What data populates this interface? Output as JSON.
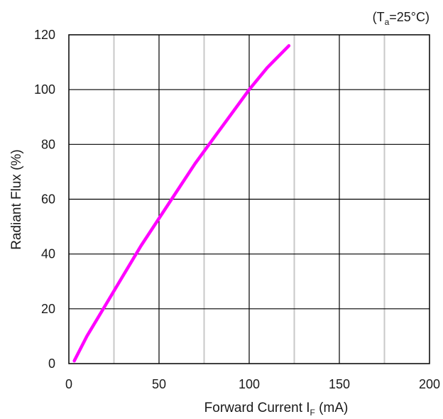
{
  "chart_data": {
    "type": "line",
    "condition_note": {
      "prefix": "(T",
      "subscript": "a",
      "suffix": "=25°C)"
    },
    "xlabel": {
      "main": "Forward Current I",
      "subscript": "F",
      "suffix": " (mA)"
    },
    "ylabel": "Radiant Flux (%)",
    "xlim": [
      0,
      200
    ],
    "ylim": [
      0,
      120
    ],
    "xticks": [
      0,
      50,
      100,
      150,
      200
    ],
    "yticks": [
      0,
      20,
      40,
      60,
      80,
      100,
      120
    ],
    "x_minor_gridlines": [
      25,
      75,
      125,
      175
    ],
    "grid": true,
    "series": [
      {
        "color": "#ff00ff",
        "x": [
          3,
          10,
          20,
          30,
          40,
          50,
          60,
          70,
          80,
          90,
          100,
          110,
          122
        ],
        "y": [
          1,
          10,
          21,
          32,
          43,
          53,
          63,
          73,
          82,
          91,
          100,
          108,
          116
        ]
      }
    ]
  }
}
